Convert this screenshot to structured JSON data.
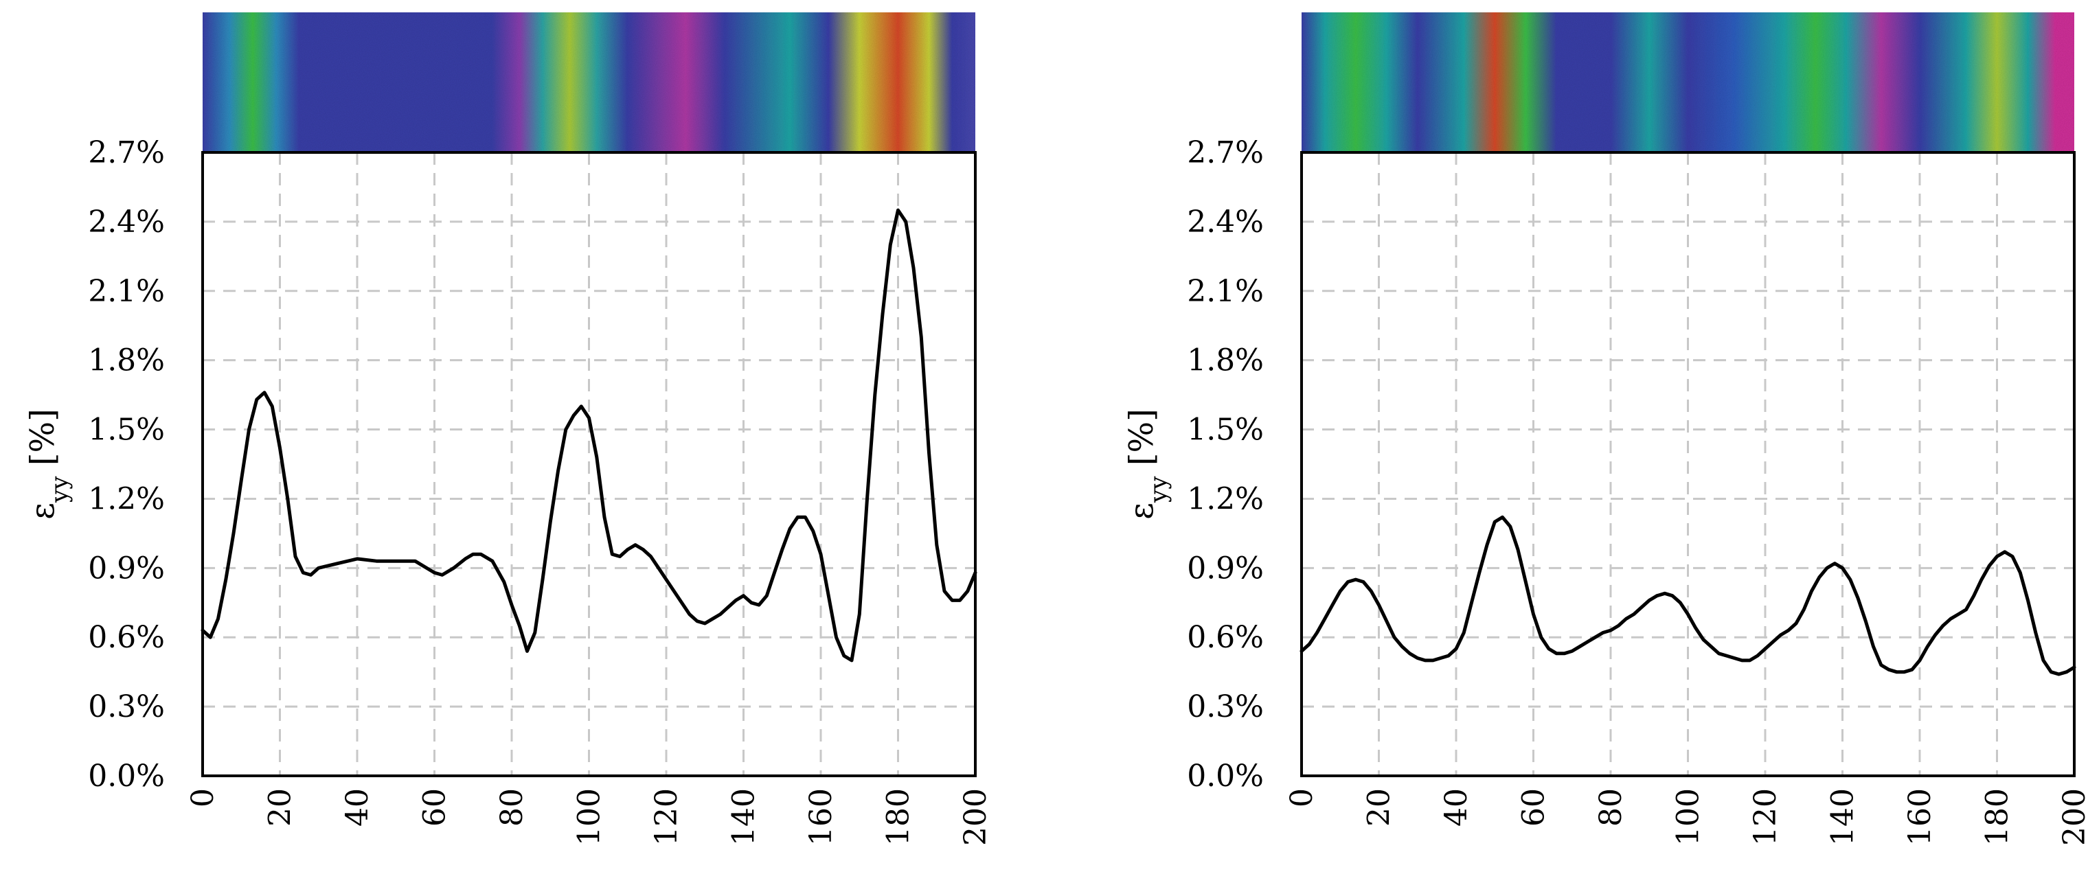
{
  "chart_data": [
    {
      "type": "line",
      "title": "",
      "xlabel": "",
      "ylabel": {
        "base": "ε",
        "sub": "yy",
        "suffix": " [%]"
      },
      "xlim": [
        0,
        200
      ],
      "ylim": [
        0,
        2.7
      ],
      "x_ticks": [
        0,
        20,
        40,
        60,
        80,
        100,
        120,
        140,
        160,
        180,
        200
      ],
      "x_tick_labels": [
        "0",
        "20",
        "40",
        "60",
        "80",
        "100",
        "120",
        "140",
        "160",
        "180",
        "200"
      ],
      "y_ticks": [
        0,
        0.3,
        0.6,
        0.9,
        1.2,
        1.5,
        1.8,
        2.1,
        2.4,
        2.7
      ],
      "y_tick_labels": [
        "0.0%",
        "0.3%",
        "0.6%",
        "0.9%",
        "1.2%",
        "1.5%",
        "1.8%",
        "2.1%",
        "2.4%",
        "2.7%"
      ],
      "grid": true,
      "strain_field_image": {
        "description": "DIC strain-field color map strip",
        "colormap": [
          "#3b3fa8",
          "#2f5fc0",
          "#22a6a6",
          "#3cbf4a",
          "#c8d23a",
          "#d84a2a",
          "#d0329a"
        ],
        "bands": [
          {
            "x": 0,
            "color": "#3b3fa8"
          },
          {
            "x": 7,
            "color": "#2f8fbf"
          },
          {
            "x": 13,
            "color": "#3cbf4a"
          },
          {
            "x": 19,
            "color": "#2f8fbf"
          },
          {
            "x": 25,
            "color": "#3b3fa8"
          },
          {
            "x": 75,
            "color": "#3b3fa8"
          },
          {
            "x": 82,
            "color": "#8a3fb0"
          },
          {
            "x": 88,
            "color": "#2fa6a6"
          },
          {
            "x": 95,
            "color": "#aacb3a"
          },
          {
            "x": 102,
            "color": "#2fa6a6"
          },
          {
            "x": 110,
            "color": "#3b3fa8"
          },
          {
            "x": 125,
            "color": "#b03aa6"
          },
          {
            "x": 135,
            "color": "#3b3fa8"
          },
          {
            "x": 152,
            "color": "#22a6a6"
          },
          {
            "x": 162,
            "color": "#3b3fa8"
          },
          {
            "x": 170,
            "color": "#c8d23a"
          },
          {
            "x": 180,
            "color": "#d84a2a"
          },
          {
            "x": 188,
            "color": "#c8d23a"
          },
          {
            "x": 194,
            "color": "#3b3fa8"
          },
          {
            "x": 200,
            "color": "#4a4ab0"
          }
        ]
      },
      "series": [
        {
          "x": [
            0,
            2,
            4,
            6,
            8,
            10,
            12,
            14,
            16,
            18,
            20,
            22,
            24,
            26,
            28,
            30,
            35,
            40,
            45,
            50,
            55,
            60,
            62,
            65,
            68,
            70,
            72,
            75,
            78,
            80,
            82,
            84,
            86,
            88,
            90,
            92,
            94,
            96,
            98,
            100,
            102,
            104,
            106,
            108,
            110,
            112,
            114,
            116,
            118,
            120,
            122,
            124,
            126,
            128,
            130,
            132,
            134,
            136,
            138,
            140,
            142,
            144,
            146,
            148,
            150,
            152,
            154,
            156,
            158,
            160,
            162,
            164,
            166,
            168,
            170,
            172,
            174,
            176,
            178,
            180,
            182,
            184,
            186,
            188,
            190,
            192,
            194,
            196,
            198,
            200
          ],
          "values": [
            0.63,
            0.6,
            0.68,
            0.85,
            1.05,
            1.28,
            1.5,
            1.63,
            1.66,
            1.6,
            1.42,
            1.2,
            0.95,
            0.88,
            0.87,
            0.9,
            0.92,
            0.94,
            0.93,
            0.93,
            0.93,
            0.88,
            0.87,
            0.9,
            0.94,
            0.96,
            0.96,
            0.93,
            0.84,
            0.74,
            0.65,
            0.54,
            0.62,
            0.85,
            1.1,
            1.32,
            1.5,
            1.56,
            1.6,
            1.55,
            1.38,
            1.12,
            0.96,
            0.95,
            0.98,
            1.0,
            0.98,
            0.95,
            0.9,
            0.85,
            0.8,
            0.75,
            0.7,
            0.67,
            0.66,
            0.68,
            0.7,
            0.73,
            0.76,
            0.78,
            0.75,
            0.74,
            0.78,
            0.88,
            0.98,
            1.07,
            1.12,
            1.12,
            1.06,
            0.96,
            0.78,
            0.6,
            0.52,
            0.5,
            0.7,
            1.2,
            1.65,
            2.0,
            2.3,
            2.45,
            2.4,
            2.2,
            1.9,
            1.4,
            1.0,
            0.8,
            0.76,
            0.76,
            0.8,
            0.88
          ]
        }
      ]
    },
    {
      "type": "line",
      "title": "",
      "xlabel": "",
      "ylabel": {
        "base": "ε",
        "sub": "yy",
        "suffix": " [%]"
      },
      "xlim": [
        0,
        200
      ],
      "ylim": [
        0,
        2.7
      ],
      "x_ticks": [
        0,
        20,
        40,
        60,
        80,
        100,
        120,
        140,
        160,
        180,
        200
      ],
      "x_tick_labels": [
        "0",
        "20",
        "40",
        "60",
        "80",
        "100",
        "120",
        "140",
        "160",
        "180",
        "200"
      ],
      "y_ticks": [
        0,
        0.3,
        0.6,
        0.9,
        1.2,
        1.5,
        1.8,
        2.1,
        2.4,
        2.7
      ],
      "y_tick_labels": [
        "0.0%",
        "0.3%",
        "0.6%",
        "0.9%",
        "1.2%",
        "1.5%",
        "1.8%",
        "2.1%",
        "2.4%",
        "2.7%"
      ],
      "grid": true,
      "strain_field_image": {
        "description": "DIC strain-field color map strip",
        "colormap": [
          "#3b3fa8",
          "#2f5fc0",
          "#22a6a6",
          "#3cbf4a",
          "#c8d23a",
          "#d84a2a",
          "#d0329a"
        ],
        "bands": [
          {
            "x": 0,
            "color": "#3b3fa8"
          },
          {
            "x": 6,
            "color": "#22a6a6"
          },
          {
            "x": 14,
            "color": "#3cbf4a"
          },
          {
            "x": 22,
            "color": "#22a6a6"
          },
          {
            "x": 30,
            "color": "#3b3fa8"
          },
          {
            "x": 42,
            "color": "#22a6a6"
          },
          {
            "x": 50,
            "color": "#d84a2a"
          },
          {
            "x": 58,
            "color": "#3cbf4a"
          },
          {
            "x": 66,
            "color": "#3b3fa8"
          },
          {
            "x": 80,
            "color": "#3b3fa8"
          },
          {
            "x": 90,
            "color": "#22a6a6"
          },
          {
            "x": 100,
            "color": "#3b3fa8"
          },
          {
            "x": 112,
            "color": "#2f5fc0"
          },
          {
            "x": 125,
            "color": "#22a6a6"
          },
          {
            "x": 133,
            "color": "#3cbf4a"
          },
          {
            "x": 141,
            "color": "#22a6a6"
          },
          {
            "x": 150,
            "color": "#b03aa6"
          },
          {
            "x": 160,
            "color": "#3b3fa8"
          },
          {
            "x": 172,
            "color": "#22a6a6"
          },
          {
            "x": 180,
            "color": "#aacb3a"
          },
          {
            "x": 188,
            "color": "#22a6a6"
          },
          {
            "x": 195,
            "color": "#d0329a"
          },
          {
            "x": 200,
            "color": "#d0329a"
          }
        ]
      },
      "series": [
        {
          "x": [
            0,
            2,
            4,
            6,
            8,
            10,
            12,
            14,
            16,
            18,
            20,
            22,
            24,
            26,
            28,
            30,
            32,
            34,
            36,
            38,
            40,
            42,
            44,
            46,
            48,
            50,
            52,
            54,
            56,
            58,
            60,
            62,
            64,
            66,
            68,
            70,
            72,
            74,
            76,
            78,
            80,
            82,
            84,
            86,
            88,
            90,
            92,
            94,
            96,
            98,
            100,
            102,
            104,
            106,
            108,
            110,
            112,
            114,
            116,
            118,
            120,
            122,
            124,
            126,
            128,
            130,
            132,
            134,
            136,
            138,
            140,
            142,
            144,
            146,
            148,
            150,
            152,
            154,
            156,
            158,
            160,
            162,
            164,
            166,
            168,
            170,
            172,
            174,
            176,
            178,
            180,
            182,
            184,
            186,
            188,
            190,
            192,
            194,
            196,
            198,
            200
          ],
          "values": [
            0.54,
            0.57,
            0.62,
            0.68,
            0.74,
            0.8,
            0.84,
            0.85,
            0.84,
            0.8,
            0.74,
            0.67,
            0.6,
            0.56,
            0.53,
            0.51,
            0.5,
            0.5,
            0.51,
            0.52,
            0.55,
            0.62,
            0.75,
            0.88,
            1.0,
            1.1,
            1.12,
            1.08,
            0.98,
            0.84,
            0.7,
            0.6,
            0.55,
            0.53,
            0.53,
            0.54,
            0.56,
            0.58,
            0.6,
            0.62,
            0.63,
            0.65,
            0.68,
            0.7,
            0.73,
            0.76,
            0.78,
            0.79,
            0.78,
            0.75,
            0.7,
            0.64,
            0.59,
            0.56,
            0.53,
            0.52,
            0.51,
            0.5,
            0.5,
            0.52,
            0.55,
            0.58,
            0.61,
            0.63,
            0.66,
            0.72,
            0.8,
            0.86,
            0.9,
            0.92,
            0.9,
            0.85,
            0.77,
            0.67,
            0.56,
            0.48,
            0.46,
            0.45,
            0.45,
            0.46,
            0.5,
            0.56,
            0.61,
            0.65,
            0.68,
            0.7,
            0.72,
            0.78,
            0.85,
            0.91,
            0.95,
            0.97,
            0.95,
            0.88,
            0.76,
            0.62,
            0.5,
            0.45,
            0.44,
            0.45,
            0.47
          ]
        }
      ]
    }
  ]
}
